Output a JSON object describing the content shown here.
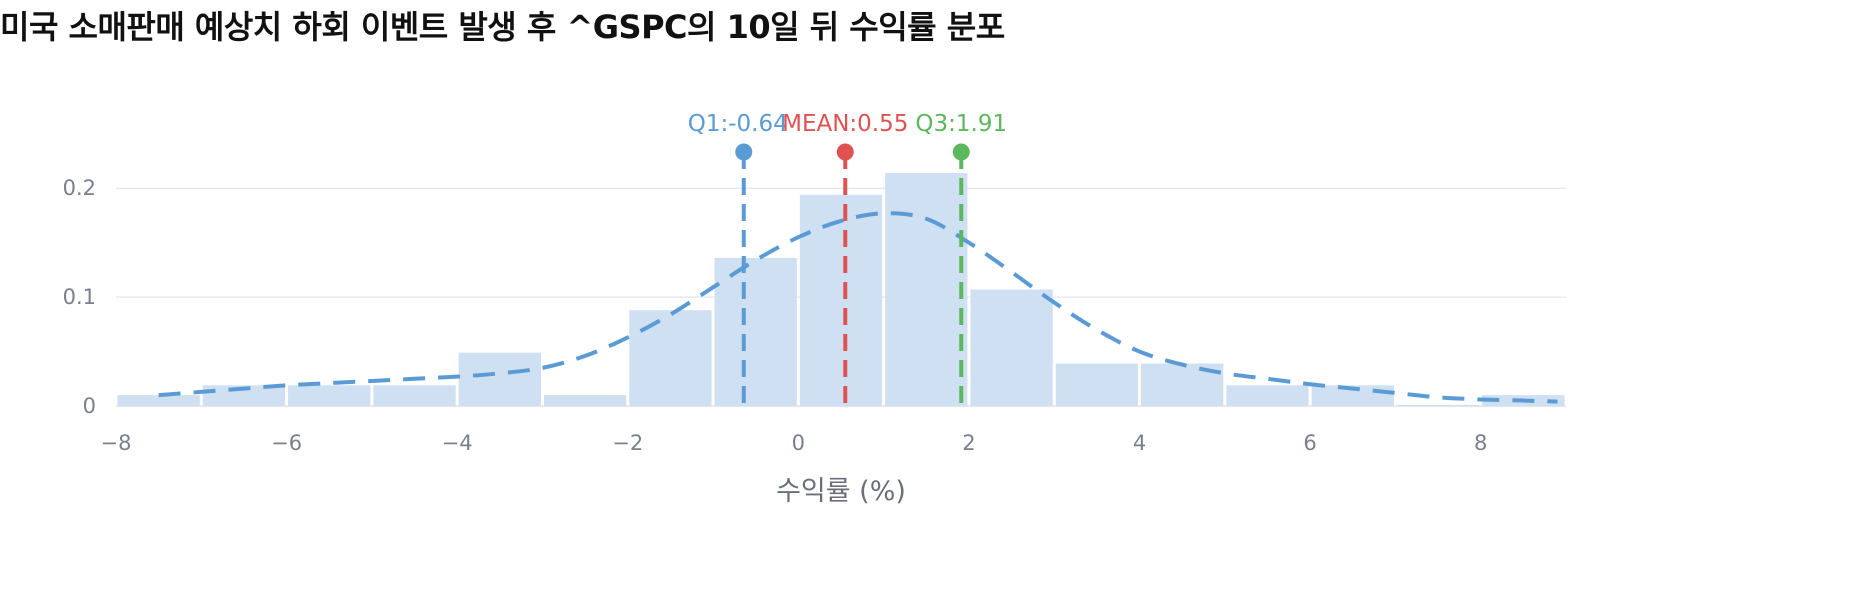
{
  "title": "미국 소매판매 예상치 하회 이벤트 발생 후 ^GSPC의 10일 뒤 수익률 분포",
  "chart_data": {
    "type": "bar",
    "xlabel": "수익률 (%)",
    "xlim": [
      -8,
      9
    ],
    "ylim": [
      0,
      0.27
    ],
    "x_ticks": [
      -8,
      -6,
      -4,
      -2,
      0,
      2,
      4,
      6,
      8
    ],
    "x_tick_labels": [
      "−8",
      "−6",
      "−4",
      "−2",
      "0",
      "2",
      "4",
      "6",
      "8"
    ],
    "y_ticks": [
      0,
      0.1,
      0.2
    ],
    "y_tick_labels": [
      "0",
      "0.1",
      "0.2"
    ],
    "grid": true,
    "bar_color": "#cfe0f2",
    "bins": [
      {
        "x0": -8,
        "x1": -7,
        "value": 0.01
      },
      {
        "x0": -7,
        "x1": -6,
        "value": 0.019
      },
      {
        "x0": -6,
        "x1": -5,
        "value": 0.019
      },
      {
        "x0": -5,
        "x1": -4,
        "value": 0.019
      },
      {
        "x0": -4,
        "x1": -3,
        "value": 0.049
      },
      {
        "x0": -3,
        "x1": -2,
        "value": 0.01
      },
      {
        "x0": -2,
        "x1": -1,
        "value": 0.088
      },
      {
        "x0": -1,
        "x1": 0,
        "value": 0.136
      },
      {
        "x0": 0,
        "x1": 1,
        "value": 0.194
      },
      {
        "x0": 1,
        "x1": 2,
        "value": 0.214
      },
      {
        "x0": 2,
        "x1": 3,
        "value": 0.107
      },
      {
        "x0": 3,
        "x1": 4,
        "value": 0.039
      },
      {
        "x0": 4,
        "x1": 5,
        "value": 0.039
      },
      {
        "x0": 5,
        "x1": 6,
        "value": 0.019
      },
      {
        "x0": 6,
        "x1": 7,
        "value": 0.019
      },
      {
        "x0": 7,
        "x1": 8,
        "value": 0.001
      },
      {
        "x0": 8,
        "x1": 9,
        "value": 0.01
      }
    ],
    "density_curve": {
      "color": "#5b9bd5",
      "points": [
        [
          -7.5,
          0.01
        ],
        [
          -7,
          0.013
        ],
        [
          -6.5,
          0.016
        ],
        [
          -6,
          0.019
        ],
        [
          -5.5,
          0.021
        ],
        [
          -5,
          0.023
        ],
        [
          -4.5,
          0.025
        ],
        [
          -4,
          0.027
        ],
        [
          -3.5,
          0.03
        ],
        [
          -3,
          0.035
        ],
        [
          -2.5,
          0.046
        ],
        [
          -2,
          0.063
        ],
        [
          -1.5,
          0.084
        ],
        [
          -1,
          0.109
        ],
        [
          -0.5,
          0.134
        ],
        [
          0,
          0.155
        ],
        [
          0.5,
          0.17
        ],
        [
          1,
          0.177
        ],
        [
          1.5,
          0.172
        ],
        [
          2,
          0.15
        ],
        [
          2.5,
          0.123
        ],
        [
          3,
          0.095
        ],
        [
          3.5,
          0.07
        ],
        [
          4,
          0.05
        ],
        [
          4.5,
          0.038
        ],
        [
          5,
          0.03
        ],
        [
          5.5,
          0.025
        ],
        [
          6,
          0.02
        ],
        [
          6.5,
          0.016
        ],
        [
          7,
          0.012
        ],
        [
          7.5,
          0.008
        ],
        [
          8,
          0.006
        ],
        [
          8.5,
          0.005
        ],
        [
          8.9,
          0.004
        ]
      ]
    },
    "markers": [
      {
        "name": "Q1",
        "value": -0.64,
        "label": "Q1:-0.64",
        "color": "#5b9bd5"
      },
      {
        "name": "MEAN",
        "value": 0.55,
        "label": "MEAN:0.55",
        "color": "#e05252"
      },
      {
        "name": "Q3",
        "value": 1.91,
        "label": "Q3:1.91",
        "color": "#5cb85c"
      }
    ]
  }
}
